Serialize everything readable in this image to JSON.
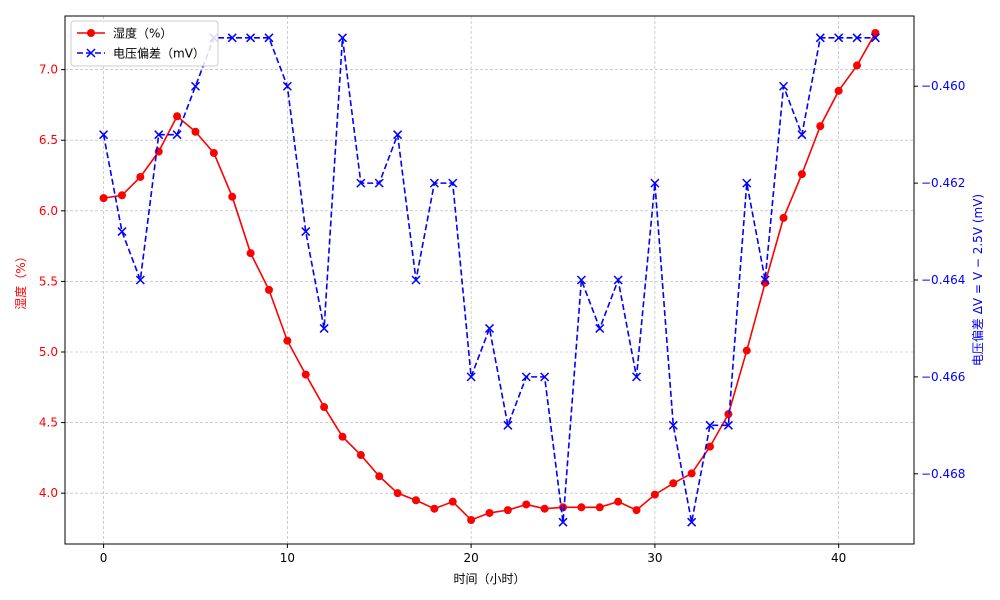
{
  "chart_data": {
    "type": "line",
    "xlabel": "时间（小时）",
    "ylabel_left": "湿度（%）",
    "ylabel_right": "电压偏差 ΔV = V − 2.5V (mV)",
    "xlim": [
      -2.1,
      44.1
    ],
    "ylim_left": [
      3.64,
      7.38
    ],
    "ylim_right": [
      -0.46945,
      -0.45855
    ],
    "x_ticks": [
      0,
      10,
      20,
      30,
      40
    ],
    "y_left_ticks": [
      4.0,
      4.5,
      5.0,
      5.5,
      6.0,
      6.5,
      7.0
    ],
    "y_right_ticks": [
      -0.468,
      -0.466,
      -0.464,
      -0.462,
      -0.46
    ],
    "x_tick_labels": [
      "0",
      "10",
      "20",
      "30",
      "40"
    ],
    "y_left_tick_labels": [
      "4.0",
      "4.5",
      "5.0",
      "5.5",
      "6.0",
      "6.5",
      "7.0"
    ],
    "y_right_tick_labels": [
      "−0.468",
      "−0.466",
      "−0.464",
      "−0.462",
      "−0.460"
    ],
    "grid": true,
    "legend_position": "top-left",
    "series": [
      {
        "name": "湿度（%）",
        "axis": "left",
        "color": "#ff0000",
        "marker": "circle",
        "line_style": "solid",
        "x": [
          0,
          1,
          2,
          3,
          4,
          5,
          6,
          7,
          8,
          9,
          10,
          11,
          12,
          13,
          14,
          15,
          16,
          17,
          18,
          19,
          20,
          21,
          22,
          23,
          24,
          25,
          26,
          27,
          28,
          29,
          30,
          31,
          32,
          33,
          34,
          35,
          36,
          37,
          38,
          39,
          40,
          41,
          42
        ],
        "values": [
          6.09,
          6.11,
          6.24,
          6.42,
          6.67,
          6.56,
          6.41,
          6.1,
          5.7,
          5.44,
          5.08,
          4.84,
          4.61,
          4.4,
          4.27,
          4.12,
          4.0,
          3.95,
          3.89,
          3.94,
          3.81,
          3.86,
          3.88,
          3.92,
          3.89,
          3.9,
          3.9,
          3.9,
          3.94,
          3.88,
          3.99,
          4.07,
          4.14,
          4.33,
          4.56,
          5.01,
          5.49,
          5.95,
          6.26,
          6.6,
          6.85,
          7.03,
          7.26
        ]
      },
      {
        "name": "电压偏差（mV）",
        "axis": "right",
        "color": "#0000ff",
        "marker": "x",
        "line_style": "dashed",
        "x": [
          0,
          1,
          2,
          3,
          4,
          5,
          6,
          7,
          8,
          9,
          10,
          11,
          12,
          13,
          14,
          15,
          16,
          17,
          18,
          19,
          20,
          21,
          22,
          23,
          24,
          25,
          26,
          27,
          28,
          29,
          30,
          31,
          32,
          33,
          34,
          35,
          36,
          37,
          38,
          39,
          40,
          41,
          42
        ],
        "values": [
          -0.461,
          -0.463,
          -0.464,
          -0.461,
          -0.461,
          -0.46,
          -0.459,
          -0.459,
          -0.459,
          -0.459,
          -0.46,
          -0.463,
          -0.465,
          -0.459,
          -0.462,
          -0.462,
          -0.461,
          -0.464,
          -0.462,
          -0.462,
          -0.466,
          -0.465,
          -0.467,
          -0.466,
          -0.466,
          -0.469,
          -0.464,
          -0.465,
          -0.464,
          -0.466,
          -0.462,
          -0.467,
          -0.469,
          -0.467,
          -0.467,
          -0.462,
          -0.464,
          -0.46,
          -0.461,
          -0.459,
          -0.459,
          -0.459,
          -0.459
        ]
      }
    ]
  },
  "colors": {
    "left_axis": "#ff0000",
    "right_axis": "#0000ff",
    "grid": "#b0b0b0",
    "frame": "#000000"
  }
}
